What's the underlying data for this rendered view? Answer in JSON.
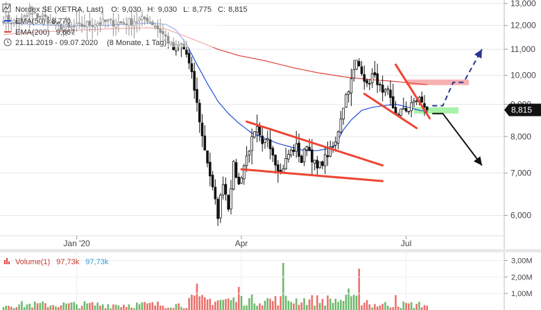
{
  "legend": {
    "instrument": "Nordex SE (XETRA, Last)",
    "ohlc": {
      "O": "9,030",
      "H": "9,030",
      "L": "8,775",
      "C": "8,815"
    },
    "ohlc_labels": {
      "O": "O:",
      "H": "H:",
      "L": "L:",
      "C": "C:"
    },
    "ema50": {
      "label": "EMA(50)",
      "value": "8,770",
      "color": "#1f4fdc"
    },
    "ema200": {
      "label": "EMA(200)",
      "value": "9,667",
      "color": "#e0413a"
    },
    "range": "21.11.2019 - 09.07.2020",
    "period": "(8 Monate, 1 Tag)",
    "icon": "chart-line-icon"
  },
  "volume_legend": {
    "label": "Volume(1)",
    "value1": "97,73k",
    "value2": "97,73k",
    "icon": "bar-chart-icon"
  },
  "last_price": {
    "label": "8,815",
    "value": 8.815
  },
  "colors": {
    "up": "#3ea33e",
    "down": "#e0413a",
    "candle": "#111111",
    "trend": "#ee4433",
    "resistance_zone": "#f5a3a3",
    "support_zone": "#9ff09f",
    "arrow_up": "#283593",
    "arrow_down": "#111111"
  },
  "chart_data": {
    "type": "candlestick",
    "x_ticks": [
      {
        "label": "Jan '20",
        "index": 28
      },
      {
        "label": "Apr",
        "index": 91
      },
      {
        "label": "Jul",
        "index": 154
      }
    ],
    "y_ticks": [
      {
        "label": "13,000",
        "value": 13
      },
      {
        "label": "12,000",
        "value": 12
      },
      {
        "label": "11,000",
        "value": 11
      },
      {
        "label": "10,000",
        "value": 10
      },
      {
        "label": "9,000",
        "value": 9
      },
      {
        "label": "8,000",
        "value": 8
      },
      {
        "label": "7,000",
        "value": 7
      },
      {
        "label": "6,000",
        "value": 6
      }
    ],
    "y_range": [
      5.5,
      13.0
    ],
    "y_scale": "log",
    "bar_count": 163,
    "anchors": [
      [
        0,
        12.3
      ],
      [
        5,
        12.1
      ],
      [
        10,
        12.5
      ],
      [
        15,
        12.4
      ],
      [
        20,
        12.0
      ],
      [
        25,
        11.85
      ],
      [
        30,
        12.0
      ],
      [
        35,
        12.1
      ],
      [
        40,
        12.15
      ],
      [
        45,
        12.1
      ],
      [
        50,
        12.2
      ],
      [
        55,
        12.3
      ],
      [
        58,
        12.0
      ],
      [
        62,
        11.5
      ],
      [
        65,
        11.0
      ],
      [
        68,
        11.2
      ],
      [
        70,
        10.8
      ],
      [
        72,
        10.0
      ],
      [
        74,
        9.0
      ],
      [
        76,
        8.0
      ],
      [
        78,
        7.3
      ],
      [
        80,
        6.6
      ],
      [
        82,
        6.0
      ],
      [
        84,
        6.8
      ],
      [
        86,
        6.2
      ],
      [
        88,
        7.2
      ],
      [
        90,
        6.7
      ],
      [
        92,
        7.2
      ],
      [
        95,
        7.9
      ],
      [
        97,
        8.2
      ],
      [
        99,
        7.7
      ],
      [
        101,
        8.0
      ],
      [
        104,
        7.3
      ],
      [
        106,
        7.0
      ],
      [
        109,
        7.5
      ],
      [
        112,
        7.7
      ],
      [
        114,
        7.3
      ],
      [
        116,
        7.8
      ],
      [
        118,
        7.4
      ],
      [
        120,
        7.1
      ],
      [
        122,
        7.3
      ],
      [
        125,
        7.6
      ],
      [
        127,
        7.8
      ],
      [
        129,
        8.6
      ],
      [
        131,
        9.3
      ],
      [
        133,
        9.8
      ],
      [
        135,
        10.5
      ],
      [
        137,
        10.2
      ],
      [
        139,
        9.6
      ],
      [
        141,
        10.0
      ],
      [
        143,
        9.8
      ],
      [
        145,
        9.3
      ],
      [
        147,
        9.4
      ],
      [
        149,
        8.9
      ],
      [
        151,
        8.6
      ],
      [
        153,
        8.9
      ],
      [
        155,
        8.8
      ],
      [
        157,
        9.1
      ],
      [
        159,
        9.2
      ],
      [
        160,
        9.0
      ],
      [
        161,
        8.95
      ],
      [
        162,
        8.815
      ]
    ],
    "ema50_anchors": [
      [
        0,
        12.1
      ],
      [
        20,
        12.0
      ],
      [
        40,
        12.0
      ],
      [
        55,
        12.1
      ],
      [
        62,
        12.05
      ],
      [
        66,
        11.8
      ],
      [
        70,
        11.2
      ],
      [
        74,
        10.4
      ],
      [
        78,
        9.7
      ],
      [
        82,
        9.1
      ],
      [
        86,
        8.7
      ],
      [
        90,
        8.4
      ],
      [
        95,
        8.1
      ],
      [
        100,
        7.95
      ],
      [
        105,
        7.8
      ],
      [
        110,
        7.7
      ],
      [
        115,
        7.6
      ],
      [
        120,
        7.6
      ],
      [
        124,
        7.65
      ],
      [
        127,
        7.75
      ],
      [
        130,
        8.2
      ],
      [
        133,
        8.5
      ],
      [
        137,
        8.8
      ],
      [
        141,
        8.9
      ],
      [
        145,
        8.95
      ],
      [
        150,
        9.0
      ],
      [
        155,
        8.9
      ],
      [
        159,
        8.8
      ],
      [
        162,
        8.77
      ]
    ],
    "ema200_anchors": [
      [
        0,
        11.6
      ],
      [
        10,
        11.7
      ],
      [
        20,
        11.75
      ],
      [
        30,
        11.8
      ],
      [
        40,
        11.85
      ],
      [
        55,
        11.9
      ],
      [
        62,
        11.85
      ],
      [
        68,
        11.6
      ],
      [
        75,
        11.3
      ],
      [
        82,
        11.0
      ],
      [
        90,
        10.75
      ],
      [
        100,
        10.55
      ],
      [
        110,
        10.3
      ],
      [
        120,
        10.1
      ],
      [
        130,
        9.95
      ],
      [
        140,
        9.85
      ],
      [
        150,
        9.78
      ],
      [
        162,
        9.667
      ]
    ],
    "volume_scale": {
      "max": 3.4,
      "ticks": [
        {
          "label": "3,00M",
          "value": 3.0
        },
        {
          "label": "2,00M",
          "value": 2.0
        },
        {
          "label": "1,00M",
          "value": 1.0
        }
      ]
    },
    "volume_spikes": [
      [
        107,
        2.85
      ],
      [
        136,
        2.5
      ],
      [
        132,
        1.3
      ],
      [
        74,
        1.6
      ],
      [
        90,
        1.4
      ],
      [
        150,
        0.9
      ]
    ],
    "annotations": {
      "trendlines": [
        {
          "from": [
            93,
            8.45
          ],
          "to": [
            145,
            7.2
          ]
        },
        {
          "from": [
            91,
            7.1
          ],
          "to": [
            145,
            6.8
          ]
        },
        {
          "from": [
            138,
            9.35
          ],
          "to": [
            158,
            8.25
          ]
        },
        {
          "from": [
            150,
            10.4
          ],
          "to": [
            163,
            8.55
          ]
        }
      ],
      "resistance_zone": {
        "from_index": 154,
        "to_index": 178,
        "low": 9.65,
        "high": 9.85
      },
      "support_zone": {
        "from_index": 157,
        "to_index": 174,
        "low": 8.7,
        "high": 8.9
      },
      "arrow_up": {
        "points": [
          [
            164,
            8.95
          ],
          [
            168,
            8.95
          ],
          [
            172,
            9.75
          ],
          [
            176,
            9.75
          ],
          [
            183,
            11.0
          ]
        ]
      },
      "arrow_down": {
        "points": [
          [
            164,
            8.7
          ],
          [
            168,
            8.7
          ],
          [
            183,
            7.2
          ]
        ]
      }
    }
  }
}
